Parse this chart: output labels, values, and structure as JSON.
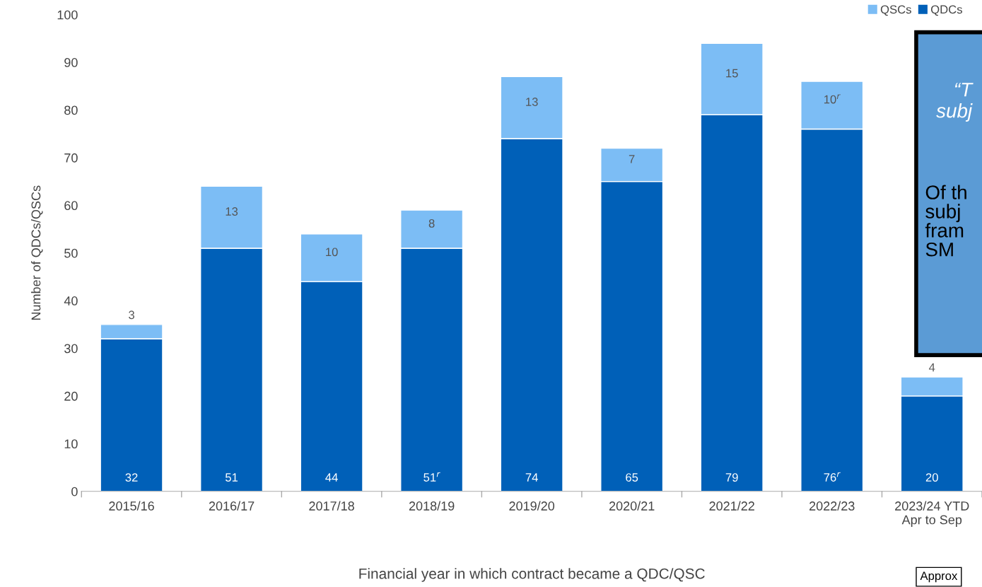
{
  "chart_data": {
    "type": "bar",
    "stacked": true,
    "xlabel": "Financial year in which contract became a QDC/QSC",
    "ylabel": "Number of QDCs/QSCs",
    "categories": [
      "2015/16",
      "2016/17",
      "2017/18",
      "2018/19",
      "2019/20",
      "2020/21",
      "2021/22",
      "2022/23",
      "2023/24 YTD\nApr to Sep"
    ],
    "series": [
      {
        "name": "QDCs",
        "color": "#0060b8",
        "values": [
          32,
          51,
          44,
          51,
          74,
          65,
          79,
          76,
          20
        ],
        "value_labels": [
          "32",
          "51",
          "44",
          "51$^{r}$",
          "74",
          "65",
          "79",
          "76$^{r}$",
          "20"
        ]
      },
      {
        "name": "QSCs",
        "color": "#7cbdf5",
        "values": [
          3,
          13,
          10,
          8,
          13,
          7,
          15,
          10,
          4
        ],
        "value_labels": [
          "3",
          "13",
          "10",
          "8",
          "13",
          "7",
          "15",
          "10$^{r}$",
          "4"
        ]
      }
    ],
    "ylim": [
      0,
      100
    ],
    "yticks": [
      0,
      10,
      20,
      30,
      40,
      50,
      60,
      70,
      80,
      90,
      100
    ],
    "grid": false,
    "legend": "top right",
    "annotations": [
      "“T\nsubj",
      "Of th\nsubj\nfram\nSM",
      "Approx"
    ]
  }
}
